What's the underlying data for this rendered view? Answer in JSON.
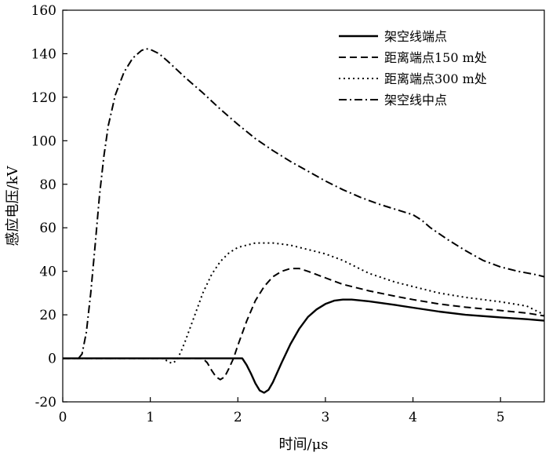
{
  "chart_data": {
    "type": "line",
    "xlabel": "时间/μs",
    "ylabel": "感应电压/kV",
    "xlim": [
      0,
      5.5
    ],
    "ylim": [
      -20,
      160
    ],
    "xticks": [
      0,
      1,
      2,
      3,
      4,
      5
    ],
    "yticks": [
      -20,
      0,
      20,
      40,
      60,
      80,
      100,
      120,
      140,
      160
    ],
    "grid": false,
    "legend_position": "top-right",
    "series": [
      {
        "name": "架空线端点",
        "style": "solid",
        "points": [
          [
            0,
            0
          ],
          [
            2.0,
            0
          ],
          [
            2.05,
            0
          ],
          [
            2.1,
            -3
          ],
          [
            2.15,
            -7
          ],
          [
            2.2,
            -11.5
          ],
          [
            2.25,
            -14.8
          ],
          [
            2.3,
            -15.8
          ],
          [
            2.35,
            -14.5
          ],
          [
            2.4,
            -11
          ],
          [
            2.5,
            -2
          ],
          [
            2.6,
            6.5
          ],
          [
            2.7,
            13.5
          ],
          [
            2.8,
            19
          ],
          [
            2.9,
            22.5
          ],
          [
            3.0,
            25
          ],
          [
            3.1,
            26.5
          ],
          [
            3.2,
            27
          ],
          [
            3.3,
            27
          ],
          [
            3.5,
            26.2
          ],
          [
            3.8,
            24.5
          ],
          [
            4.0,
            23.3
          ],
          [
            4.3,
            21.5
          ],
          [
            4.6,
            20
          ],
          [
            5.0,
            18.8
          ],
          [
            5.3,
            18
          ],
          [
            5.5,
            17.3
          ]
        ]
      },
      {
        "name": "距离端点150 m处",
        "style": "dashed",
        "points": [
          [
            0,
            0
          ],
          [
            1.6,
            0
          ],
          [
            1.65,
            -2
          ],
          [
            1.7,
            -5.5
          ],
          [
            1.75,
            -8.5
          ],
          [
            1.8,
            -9.8
          ],
          [
            1.85,
            -8.5
          ],
          [
            1.9,
            -4.5
          ],
          [
            1.95,
            0
          ],
          [
            2.0,
            6
          ],
          [
            2.1,
            17
          ],
          [
            2.2,
            26.5
          ],
          [
            2.3,
            33
          ],
          [
            2.4,
            37.5
          ],
          [
            2.5,
            40
          ],
          [
            2.6,
            41.3
          ],
          [
            2.7,
            41.3
          ],
          [
            2.8,
            40
          ],
          [
            3.0,
            37
          ],
          [
            3.2,
            34
          ],
          [
            3.5,
            31
          ],
          [
            3.8,
            28.5
          ],
          [
            4.0,
            27
          ],
          [
            4.3,
            25
          ],
          [
            4.6,
            23.5
          ],
          [
            5.0,
            22
          ],
          [
            5.3,
            20.8
          ],
          [
            5.5,
            19.5
          ]
        ]
      },
      {
        "name": "距离端点300 m处",
        "style": "dotted",
        "points": [
          [
            0,
            0
          ],
          [
            1.15,
            0
          ],
          [
            1.2,
            -1.5
          ],
          [
            1.25,
            -2.3
          ],
          [
            1.3,
            -1
          ],
          [
            1.35,
            3
          ],
          [
            1.4,
            8
          ],
          [
            1.5,
            19
          ],
          [
            1.6,
            30
          ],
          [
            1.7,
            38.5
          ],
          [
            1.8,
            44.5
          ],
          [
            1.9,
            48.5
          ],
          [
            2.0,
            51
          ],
          [
            2.2,
            53
          ],
          [
            2.4,
            53
          ],
          [
            2.6,
            52
          ],
          [
            2.8,
            50
          ],
          [
            3.0,
            48
          ],
          [
            3.2,
            45
          ],
          [
            3.5,
            39
          ],
          [
            3.8,
            35
          ],
          [
            4.0,
            33
          ],
          [
            4.3,
            30
          ],
          [
            4.6,
            28
          ],
          [
            5.0,
            26
          ],
          [
            5.3,
            24
          ],
          [
            5.5,
            20
          ]
        ]
      },
      {
        "name": "架空线中点",
        "style": "dashdot",
        "points": [
          [
            0,
            0
          ],
          [
            0.18,
            0
          ],
          [
            0.22,
            2
          ],
          [
            0.27,
            12
          ],
          [
            0.32,
            30
          ],
          [
            0.37,
            52
          ],
          [
            0.42,
            75
          ],
          [
            0.47,
            93
          ],
          [
            0.52,
            107
          ],
          [
            0.6,
            121
          ],
          [
            0.7,
            131.5
          ],
          [
            0.8,
            138
          ],
          [
            0.9,
            141.5
          ],
          [
            0.95,
            142.3
          ],
          [
            1.0,
            142
          ],
          [
            1.1,
            140
          ],
          [
            1.2,
            136.5
          ],
          [
            1.4,
            129
          ],
          [
            1.6,
            122
          ],
          [
            1.8,
            114.5
          ],
          [
            2.0,
            107.5
          ],
          [
            2.2,
            101
          ],
          [
            2.4,
            95.5
          ],
          [
            2.6,
            90.5
          ],
          [
            2.8,
            86
          ],
          [
            3.0,
            81.5
          ],
          [
            3.2,
            77.5
          ],
          [
            3.4,
            74
          ],
          [
            3.6,
            71
          ],
          [
            3.8,
            68.5
          ],
          [
            4.0,
            66
          ],
          [
            4.1,
            63.5
          ],
          [
            4.2,
            60
          ],
          [
            4.4,
            54.5
          ],
          [
            4.6,
            49.5
          ],
          [
            4.8,
            45
          ],
          [
            5.0,
            42
          ],
          [
            5.2,
            40
          ],
          [
            5.4,
            38.5
          ],
          [
            5.5,
            37.5
          ]
        ]
      }
    ]
  }
}
